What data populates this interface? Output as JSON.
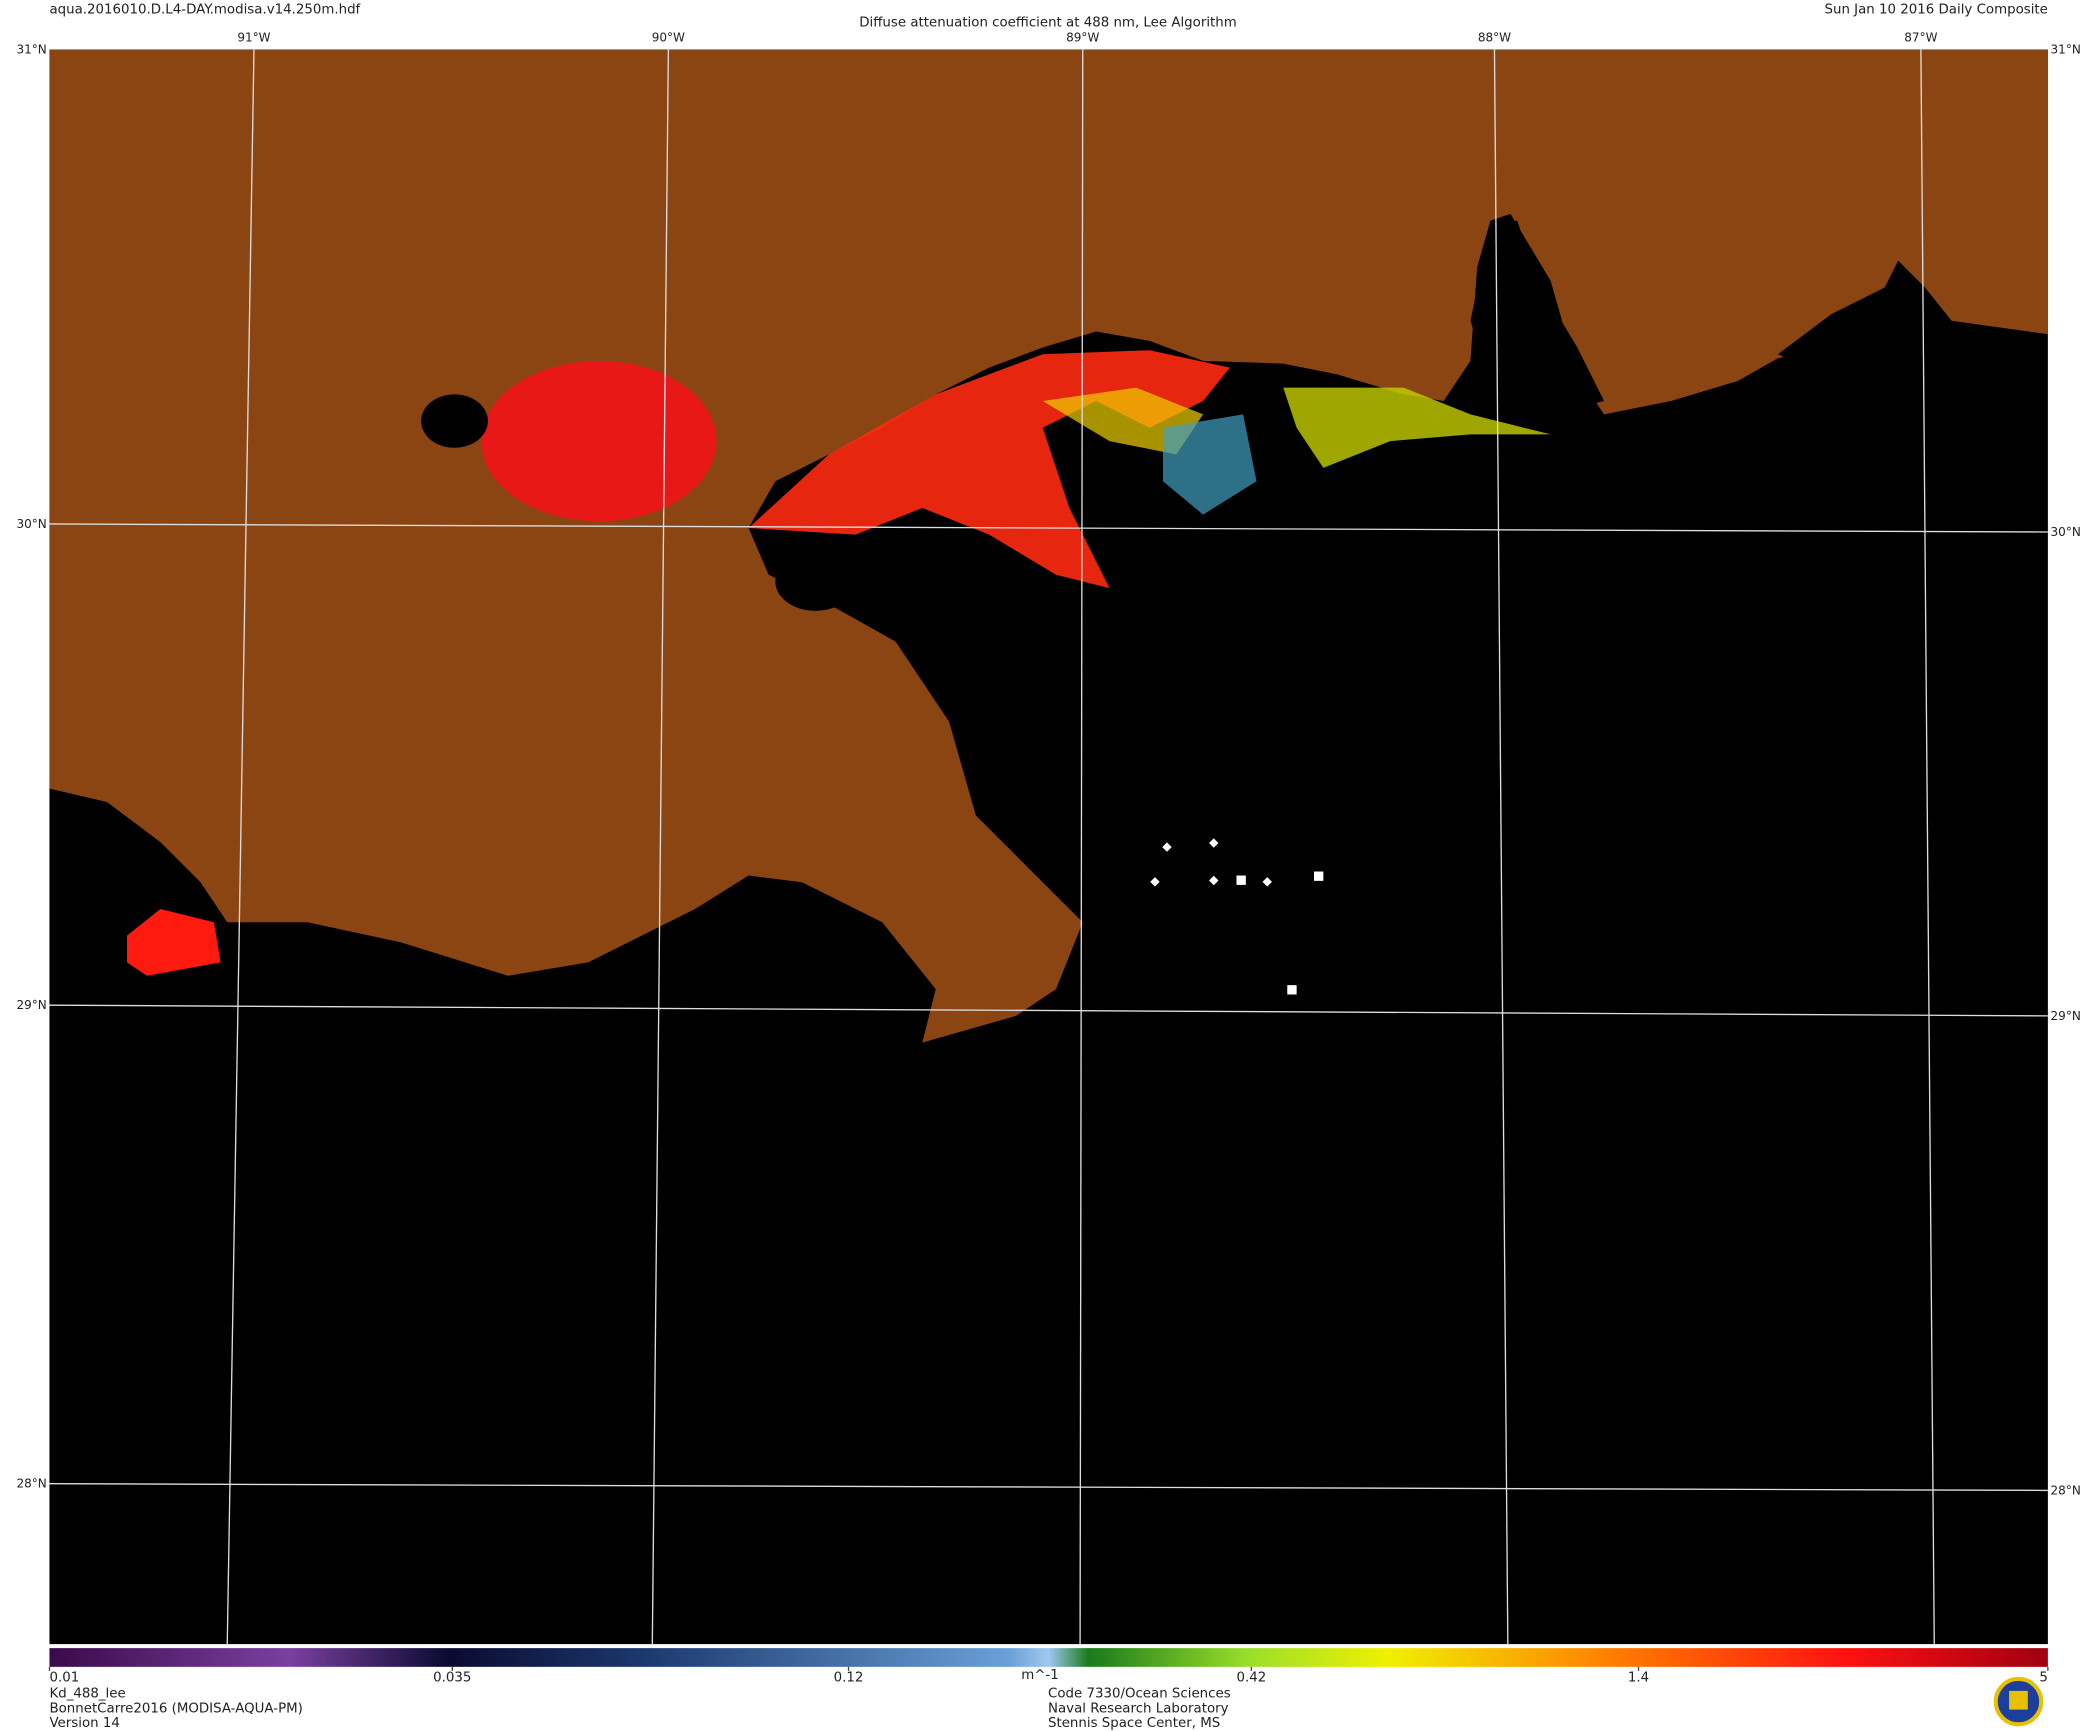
{
  "header": {
    "file": "aqua.2016010.D.L4-DAY.modisa.v14.250m.hdf",
    "title": "Diffuse attenuation coefficient at 488 nm, Lee Algorithm",
    "date": "Sun Jan 10 2016 Daily Composite"
  },
  "map": {
    "lon_labels": [
      "91°W",
      "90°W",
      "89°W",
      "88°W",
      "87°W"
    ],
    "lat_labels": [
      "31°N",
      "30°N",
      "29°N",
      "28°N"
    ]
  },
  "colorbar": {
    "ticks": [
      0.01,
      0.035,
      0.12,
      0.42,
      1.4,
      5
    ],
    "unit": "m^-1"
  },
  "footer": {
    "left": [
      "Kd_488_lee",
      "BonnetCarre2016 (MODISA-AQUA-PM)",
      "Version 14"
    ],
    "right": [
      "Code 7330/Ocean Sciences",
      "Naval Research Laboratory",
      "Stennis Space Center, MS"
    ]
  }
}
